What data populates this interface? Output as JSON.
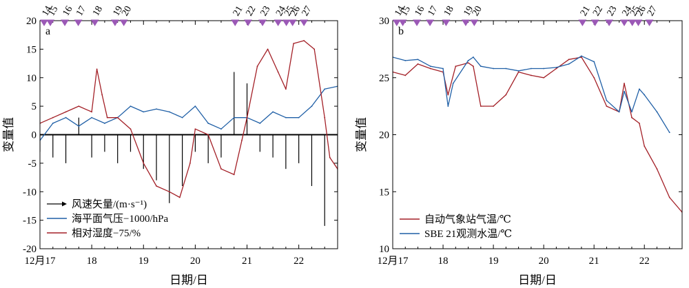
{
  "x_axis": {
    "label": "日期/日",
    "tick_values": [
      17,
      18,
      19,
      20,
      21,
      22
    ],
    "tick_labels": [
      "12月17",
      "18",
      "19",
      "20",
      "21",
      "22"
    ],
    "range": [
      17.0,
      22.75
    ]
  },
  "event_markers": {
    "labels": [
      "14",
      "15",
      "16",
      "17",
      "18",
      "19",
      "20",
      "21",
      "22",
      "23",
      "24",
      "25",
      "26",
      "27"
    ],
    "positions": [
      17.08,
      17.2,
      17.48,
      17.74,
      18.06,
      18.45,
      18.62,
      20.77,
      21.02,
      21.3,
      21.6,
      21.76,
      21.88,
      22.1
    ],
    "color": "#9b59b6"
  },
  "chart_data": [
    {
      "panel": "a",
      "type": "line",
      "ylabel": "变量值",
      "xlabel": "日期/日",
      "ylim": [
        -20,
        20
      ],
      "yticks": [
        -20,
        -15,
        -10,
        -5,
        0,
        5,
        10,
        15,
        20
      ],
      "legend": {
        "placement": "bottom-left"
      },
      "series": [
        {
          "name": "风速矢量/(m·s⁻¹)",
          "kind": "vector-sticks",
          "color": "#000000",
          "x": [
            17.0,
            17.25,
            17.5,
            17.75,
            18.0,
            18.25,
            18.5,
            18.75,
            19.0,
            19.25,
            19.5,
            19.75,
            20.0,
            20.25,
            20.5,
            20.75,
            21.0,
            21.25,
            21.5,
            21.75,
            22.0,
            22.25,
            22.5,
            22.75
          ],
          "y": [
            -3,
            -4,
            -5,
            3,
            -4,
            -3,
            -5,
            -3,
            -6,
            -8,
            -12,
            -9,
            -3,
            -5,
            -4,
            11,
            9,
            -3,
            -4,
            -6,
            -5,
            -9,
            -16,
            -10
          ]
        },
        {
          "name": "海平面气压−1000/hPa",
          "color": "#1f5fa6",
          "x": [
            17.0,
            17.25,
            17.5,
            17.75,
            18.0,
            18.25,
            18.5,
            18.75,
            19.0,
            19.25,
            19.5,
            19.75,
            20.0,
            20.25,
            20.5,
            20.75,
            21.0,
            21.25,
            21.5,
            21.75,
            22.0,
            22.25,
            22.5,
            22.75
          ],
          "y": [
            -1,
            2,
            3,
            1.5,
            3,
            2,
            3,
            5,
            4,
            4.5,
            4,
            3,
            5,
            2,
            1,
            3,
            3,
            2,
            4,
            3,
            3,
            5,
            8,
            8.5
          ]
        },
        {
          "name": "相对湿度−75/%",
          "color": "#a31f26",
          "x": [
            17.0,
            17.25,
            17.5,
            17.75,
            18.0,
            18.1,
            18.2,
            18.3,
            18.5,
            18.75,
            19.0,
            19.25,
            19.5,
            19.7,
            19.9,
            20.0,
            20.25,
            20.5,
            20.75,
            20.9,
            21.0,
            21.2,
            21.4,
            21.6,
            21.75,
            21.9,
            22.1,
            22.3,
            22.5,
            22.6,
            22.75
          ],
          "y": [
            2,
            3,
            4,
            5,
            4,
            11.5,
            7,
            3,
            3,
            1,
            -5,
            -9,
            -10,
            -11,
            -5,
            1,
            0,
            -6,
            -7,
            -1,
            3,
            12,
            15,
            11,
            8,
            16,
            16.5,
            15,
            3,
            -4,
            -6
          ]
        }
      ]
    },
    {
      "panel": "b",
      "type": "line",
      "ylabel": "变量值",
      "xlabel": "日期/日",
      "ylim": [
        10,
        30
      ],
      "yticks": [
        10,
        15,
        20,
        25,
        30
      ],
      "legend": {
        "placement": "bottom-left"
      },
      "series": [
        {
          "name": "自动气象站气温/℃",
          "color": "#a31f26",
          "x": [
            17.0,
            17.25,
            17.5,
            17.75,
            18.0,
            18.1,
            18.25,
            18.5,
            18.6,
            18.75,
            19.0,
            19.25,
            19.5,
            19.75,
            20.0,
            20.25,
            20.5,
            20.75,
            21.0,
            21.25,
            21.5,
            21.6,
            21.75,
            21.9,
            22.0,
            22.25,
            22.5,
            22.75
          ],
          "y": [
            25.5,
            25.2,
            26.2,
            25.8,
            25.5,
            23.5,
            26.0,
            26.3,
            26.0,
            22.5,
            22.5,
            23.5,
            25.5,
            25.2,
            25.0,
            25.8,
            26.6,
            26.8,
            25.0,
            22.5,
            22.0,
            24.5,
            21.5,
            21.0,
            19.0,
            17.0,
            14.5,
            13.2
          ]
        },
        {
          "name": "SBE 21观测水温/℃",
          "color": "#1f5fa6",
          "x": [
            17.0,
            17.25,
            17.5,
            17.75,
            18.0,
            18.1,
            18.2,
            18.5,
            18.6,
            18.75,
            19.0,
            19.25,
            19.5,
            19.75,
            20.0,
            20.25,
            20.5,
            20.75,
            21.0,
            21.25,
            21.5,
            21.6,
            21.75,
            21.9,
            22.0,
            22.25,
            22.5
          ],
          "y": [
            26.8,
            26.5,
            26.6,
            26.0,
            25.8,
            22.5,
            24.5,
            26.5,
            26.8,
            26.0,
            25.8,
            25.8,
            25.6,
            25.8,
            25.8,
            25.9,
            26.2,
            26.9,
            26.4,
            23.0,
            22.0,
            23.8,
            22.0,
            24.0,
            23.5,
            22.0,
            20.2
          ]
        }
      ]
    }
  ]
}
